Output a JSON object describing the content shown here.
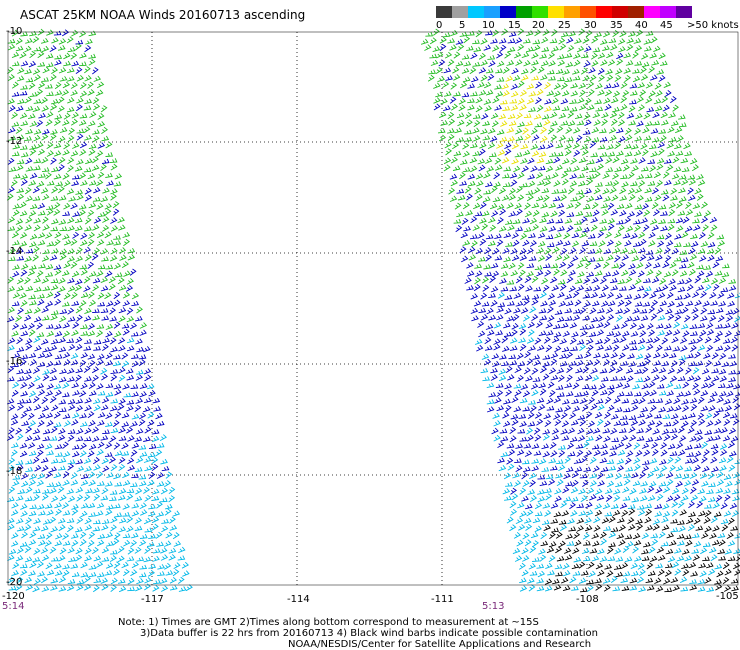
{
  "title": "ASCAT 25KM NOAA Winds 20160713 ascending",
  "legend": {
    "labels": [
      "0",
      "5",
      "10",
      "15",
      "20",
      "25",
      "30",
      "35",
      "40",
      "45",
      ">50 knots"
    ],
    "colors": [
      "#3a3a3a",
      "#a0a0a0",
      "#00c8ff",
      "#1aa0ff",
      "#0000c8",
      "#00a000",
      "#30e000",
      "#ffe000",
      "#ffa000",
      "#ff5000",
      "#ff0000",
      "#d00000",
      "#a02000",
      "#ff00ff",
      "#c000ff",
      "#6000a0"
    ]
  },
  "lat_labels": [
    "-10",
    "-12",
    "-14",
    "-16",
    "-18",
    "-20"
  ],
  "lon_labels": [
    "-120",
    "-117",
    "-114",
    "-111",
    "-108",
    "-105"
  ],
  "times": [
    "5:14",
    "5:13"
  ],
  "notes": [
    "Note: 1) Times are GMT 2)Times along bottom correspond to measurement at ~15S",
    "3)Data buffer is 22 hrs from 20160713 4) Black wind barbs indicate possible contamination",
    "NOAA/NESDIS/Center for Satellite Applications and Research"
  ],
  "wind_colors": {
    "green": "#22bb22",
    "blue": "#0000c0",
    "cyan": "#00b8e8",
    "yellow": "#e8e000",
    "black": "#000000"
  }
}
